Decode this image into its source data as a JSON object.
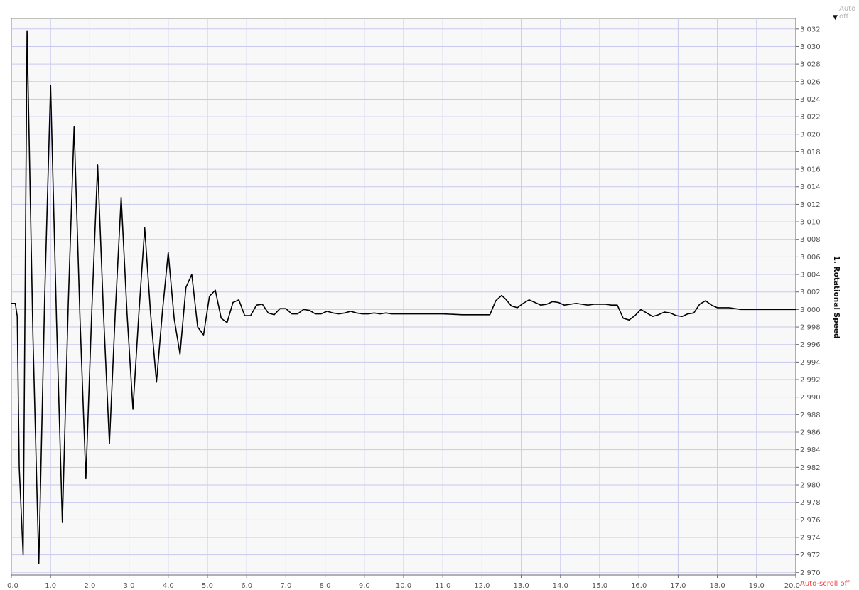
{
  "status": {
    "auto_label": "Auto off",
    "autoscroll_label": "Auto-scroll off",
    "menu_icon": "triangle-down-icon"
  },
  "colors": {
    "plot_bg": "#f8f8f8",
    "grid": "#c9c9ee",
    "line": "#000000",
    "autoscroll": "#ee4444",
    "auto": "#b5b5b5"
  },
  "chart_data": {
    "type": "line",
    "title": "",
    "xlabel": "",
    "ylabel": "1. Rotational Speed",
    "xlim": [
      0,
      20
    ],
    "ylim": [
      2969.7,
      3033.2
    ],
    "grid": true,
    "legend": "none",
    "x_ticks": [
      "0.0",
      "1.0",
      "2.0",
      "3.0",
      "4.0",
      "5.0",
      "6.0",
      "7.0",
      "8.0",
      "9.0",
      "10.0",
      "11.0",
      "12.0",
      "13.0",
      "14.0",
      "15.0",
      "16.0",
      "17.0",
      "18.0",
      "19.0",
      "20.0"
    ],
    "y_ticks": [
      "2 970",
      "2 972",
      "2 974",
      "2 976",
      "2 978",
      "2 980",
      "2 982",
      "2 984",
      "2 986",
      "2 988",
      "2 990",
      "2 992",
      "2 994",
      "2 996",
      "2 998",
      "3 000",
      "3 002",
      "3 004",
      "3 006",
      "3 008",
      "3 010",
      "3 012",
      "3 014",
      "3 016",
      "3 018",
      "3 020",
      "3 022",
      "3 024",
      "3 026",
      "3 028",
      "3 030",
      "3 032"
    ],
    "series": [
      {
        "x": [
          0.0,
          0.1,
          0.15,
          0.2,
          0.3,
          0.4,
          0.55,
          0.7,
          0.85,
          1.0,
          1.15,
          1.3,
          1.45,
          1.6,
          1.75,
          1.9,
          2.05,
          2.2,
          2.35,
          2.5,
          2.65,
          2.8,
          2.95,
          3.1,
          3.25,
          3.4,
          3.55,
          3.7,
          3.85,
          4.0,
          4.15,
          4.3,
          4.45,
          4.6,
          4.75,
          4.9,
          5.05,
          5.2,
          5.35,
          5.5,
          5.65,
          5.8,
          5.95,
          6.1,
          6.25,
          6.4,
          6.55,
          6.7,
          6.85,
          7.0,
          7.15,
          7.3,
          7.45,
          7.6,
          7.75,
          7.9,
          8.05,
          8.2,
          8.35,
          8.5,
          8.65,
          8.8,
          8.95,
          9.1,
          9.25,
          9.4,
          9.55,
          9.7,
          9.85,
          10.0,
          10.5,
          11.0,
          11.5,
          12.0,
          12.2,
          12.35,
          12.5,
          12.6,
          12.75,
          12.9,
          13.05,
          13.2,
          13.35,
          13.5,
          13.65,
          13.8,
          13.95,
          14.1,
          14.25,
          14.4,
          14.55,
          14.7,
          14.85,
          15.0,
          15.15,
          15.3,
          15.45,
          15.6,
          15.75,
          15.9,
          16.05,
          16.2,
          16.35,
          16.5,
          16.65,
          16.8,
          16.95,
          17.1,
          17.25,
          17.4,
          17.55,
          17.7,
          17.85,
          18.0,
          18.3,
          18.6,
          19.0,
          19.5,
          20.0
        ],
        "y": [
          3000.7,
          3000.7,
          2999.2,
          2982.0,
          2972.0,
          3031.8,
          2997.0,
          2971.0,
          3001.5,
          3025.6,
          2999.0,
          2975.7,
          3000.5,
          3020.9,
          2999.0,
          2980.7,
          2999.8,
          3016.5,
          2999.5,
          2984.7,
          2999.7,
          3012.8,
          2999.5,
          2988.6,
          2999.5,
          3009.3,
          2999.5,
          2991.7,
          2999.7,
          3006.5,
          2999.0,
          2994.9,
          3002.5,
          3004.0,
          2998.0,
          2997.1,
          3001.5,
          3002.2,
          2999.0,
          2998.5,
          3000.8,
          3001.1,
          2999.3,
          2999.3,
          3000.5,
          3000.6,
          2999.6,
          2999.4,
          3000.1,
          3000.1,
          2999.5,
          2999.5,
          3000.0,
          2999.9,
          2999.5,
          2999.5,
          2999.8,
          2999.6,
          2999.5,
          2999.6,
          2999.8,
          2999.6,
          2999.5,
          2999.5,
          2999.6,
          2999.5,
          2999.6,
          2999.5,
          2999.5,
          2999.5,
          2999.5,
          2999.5,
          2999.4,
          2999.4,
          2999.4,
          3001.0,
          3001.6,
          3001.2,
          3000.4,
          3000.2,
          3000.7,
          3001.1,
          3000.8,
          3000.5,
          3000.6,
          3000.9,
          3000.8,
          3000.5,
          3000.6,
          3000.7,
          3000.6,
          3000.5,
          3000.6,
          3000.6,
          3000.6,
          3000.5,
          3000.5,
          2999.0,
          2998.8,
          2999.3,
          3000.0,
          2999.6,
          2999.2,
          2999.4,
          2999.7,
          2999.6,
          2999.3,
          2999.2,
          2999.5,
          2999.6,
          3000.6,
          3001.0,
          3000.5,
          3000.2,
          3000.2,
          3000.0,
          3000.0,
          3000.0,
          3000.0
        ]
      }
    ]
  }
}
